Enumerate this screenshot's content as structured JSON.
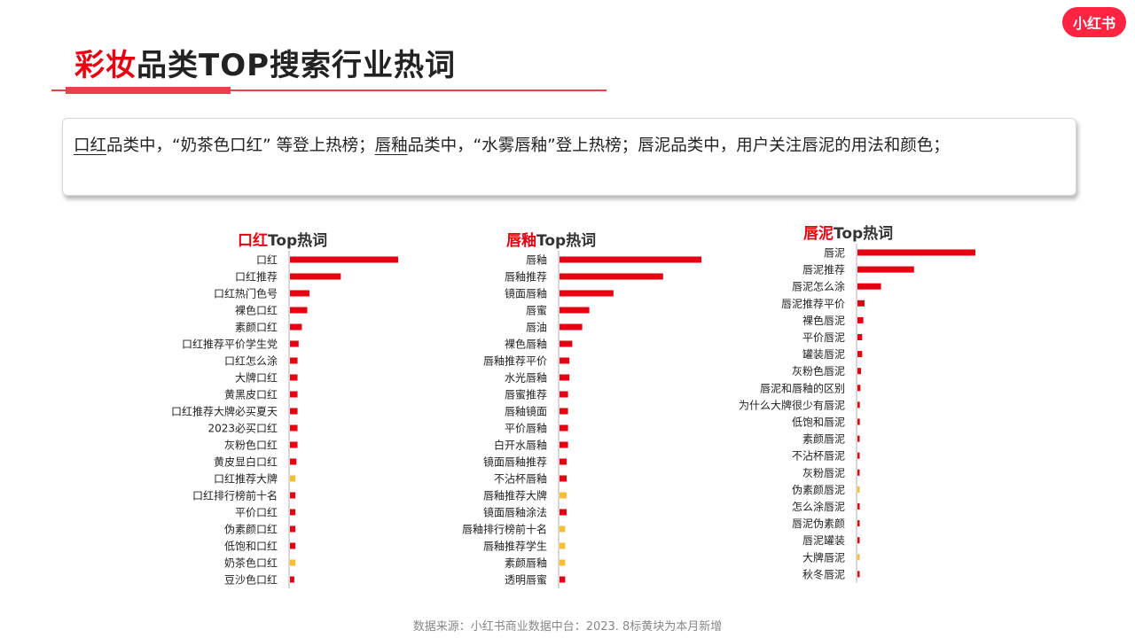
{
  "header": {
    "title_highlight": "彩妆",
    "title_rest": "品类TOP搜索行业热词",
    "logo_text": "小红书"
  },
  "summary": {
    "part1_underlined": "口红",
    "part1_rest": "品类中，“奶茶色口红” 等登上热榜；",
    "part2_underlined": "唇釉",
    "part2_rest": "品类中，“水雾唇釉”登上热榜；唇泥品类中，用户关注唇泥的用法和颜色；"
  },
  "colors": {
    "accent": "#e60012",
    "bar_normal": "#e60012",
    "bar_new": "#f5c02c"
  },
  "source_note": "数据来源：小红书商业数据中台：2023. 8标黄块为本月新增",
  "chart_data": [
    {
      "type": "bar",
      "orientation": "horizontal",
      "title_highlight": "口红",
      "title_rest": "Top热词",
      "categories": [
        "口红",
        "口红推荐",
        "口红热门色号",
        "裸色口红",
        "素颜口红",
        "口红推荐平价学生党",
        "口红怎么涂",
        "大牌口红",
        "黄黑皮口红",
        "口红推荐大牌必买夏天",
        "2023必买口红",
        "灰粉色口红",
        "黄皮显白口红",
        "口红推荐大牌",
        "口红排行榜前十名",
        "平价口红",
        "伪素颜口红",
        "低饱和口红",
        "奶茶色口红",
        "豆沙色口红"
      ],
      "values": [
        100,
        47,
        18,
        16,
        11,
        8,
        7,
        7,
        7,
        7,
        7,
        7,
        6,
        5,
        5,
        5,
        5,
        5,
        5,
        4
      ],
      "new_this_month": [
        false,
        false,
        false,
        false,
        false,
        false,
        false,
        false,
        false,
        false,
        false,
        false,
        false,
        true,
        false,
        false,
        false,
        false,
        true,
        false
      ]
    },
    {
      "type": "bar",
      "orientation": "horizontal",
      "title_highlight": "唇釉",
      "title_rest": "Top热词",
      "categories": [
        "唇釉",
        "唇釉推荐",
        "镜面唇釉",
        "唇蜜",
        "唇油",
        "裸色唇釉",
        "唇釉推荐平价",
        "水光唇釉",
        "唇蜜推荐",
        "唇釉镜面",
        "平价唇釉",
        "白开水唇釉",
        "镜面唇釉推荐",
        "不沾杯唇釉",
        "唇釉推荐大牌",
        "镜面唇釉涂法",
        "唇釉排行榜前十名",
        "唇釉推荐学生",
        "素颜唇釉",
        "透明唇蜜"
      ],
      "values": [
        100,
        73,
        38,
        21,
        16,
        9,
        7,
        7,
        6,
        6,
        6,
        6,
        5,
        5,
        5,
        5,
        4,
        4,
        4,
        4
      ],
      "new_this_month": [
        false,
        false,
        false,
        false,
        false,
        false,
        false,
        false,
        false,
        false,
        false,
        false,
        false,
        false,
        true,
        false,
        true,
        true,
        true,
        false
      ]
    },
    {
      "type": "bar",
      "orientation": "horizontal",
      "title_highlight": "唇泥",
      "title_rest": "Top热词",
      "categories": [
        "唇泥",
        "唇泥推荐",
        "唇泥怎么涂",
        "唇泥推荐平价",
        "裸色唇泥",
        "平价唇泥",
        "罐装唇泥",
        "灰粉色唇泥",
        "唇泥和唇釉的区别",
        "为什么大牌很少有唇泥",
        "低饱和唇泥",
        "素颜唇泥",
        "不沾杯唇泥",
        "灰粉唇泥",
        "伪素颜唇泥",
        "怎么涂唇泥",
        "唇泥伪素颜",
        "唇泥罐装",
        "大牌唇泥",
        "秋冬唇泥"
      ],
      "values": [
        100,
        48,
        20,
        6,
        5,
        4,
        4,
        3,
        2.5,
        2,
        2,
        1.5,
        1.5,
        1.5,
        1.2,
        1.2,
        1,
        1,
        1,
        1
      ],
      "new_this_month": [
        false,
        false,
        false,
        false,
        false,
        false,
        false,
        false,
        false,
        false,
        false,
        false,
        false,
        false,
        true,
        false,
        false,
        false,
        true,
        false
      ]
    }
  ]
}
